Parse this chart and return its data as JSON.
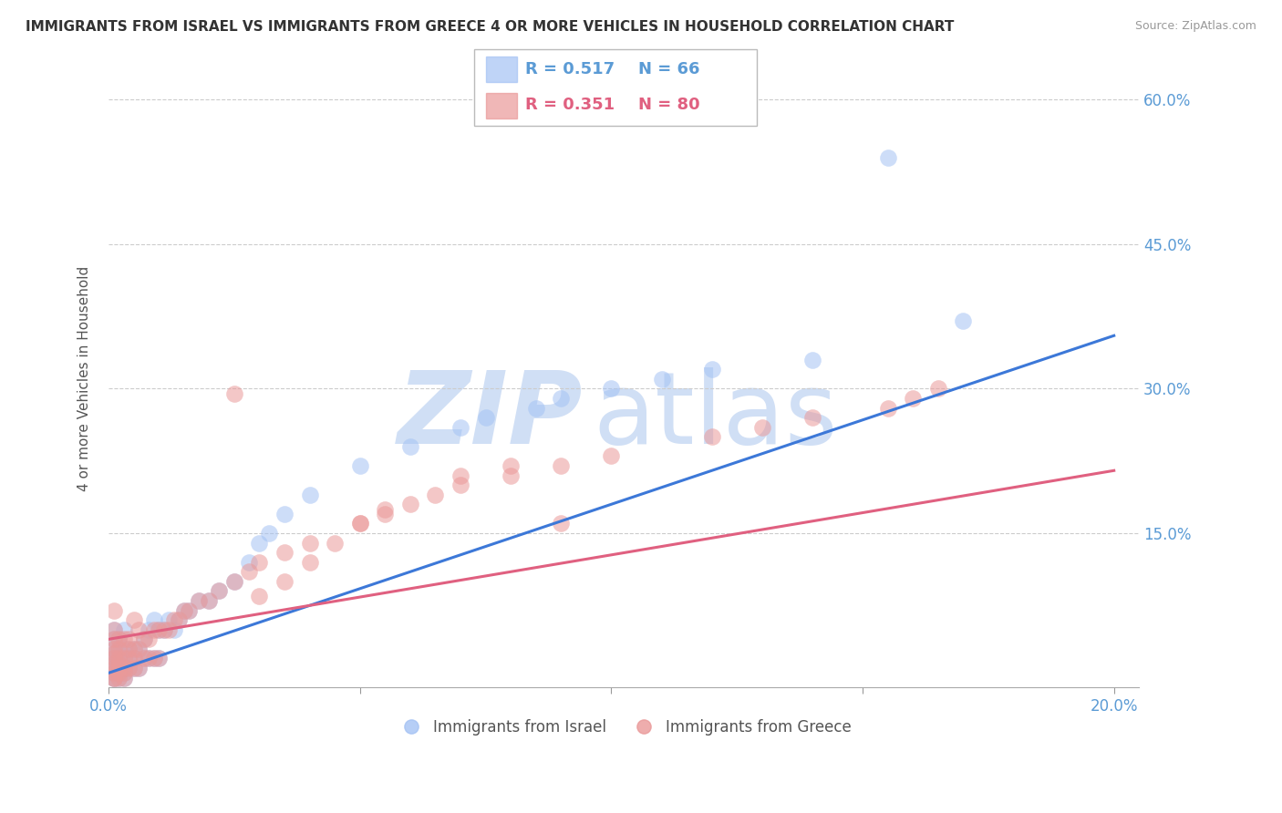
{
  "title": "IMMIGRANTS FROM ISRAEL VS IMMIGRANTS FROM GREECE 4 OR MORE VEHICLES IN HOUSEHOLD CORRELATION CHART",
  "source": "Source: ZipAtlas.com",
  "ylabel": "4 or more Vehicles in Household",
  "xlim": [
    0.0,
    0.205
  ],
  "ylim": [
    -0.01,
    0.63
  ],
  "xtick_vals": [
    0.0,
    0.05,
    0.1,
    0.15,
    0.2
  ],
  "xtick_labels": [
    "0.0%",
    "",
    "",
    "",
    "20.0%"
  ],
  "ytick_vals": [
    0.0,
    0.15,
    0.3,
    0.45,
    0.6
  ],
  "ytick_labels": [
    "",
    "15.0%",
    "30.0%",
    "45.0%",
    "60.0%"
  ],
  "israel_R": 0.517,
  "israel_N": 66,
  "greece_R": 0.351,
  "greece_N": 80,
  "israel_color": "#a4c2f4",
  "greece_color": "#ea9999",
  "israel_line_color": "#3c78d8",
  "greece_line_color": "#e06080",
  "watermark_color": "#d0dff5",
  "israel_line_x0": 0.0,
  "israel_line_y0": 0.005,
  "israel_line_x1": 0.2,
  "israel_line_y1": 0.355,
  "greece_line_x0": 0.0,
  "greece_line_y0": 0.04,
  "greece_line_x1": 0.2,
  "greece_line_y1": 0.215,
  "israel_scatter_x": [
    0.001,
    0.001,
    0.001,
    0.001,
    0.001,
    0.001,
    0.001,
    0.001,
    0.001,
    0.001,
    0.002,
    0.002,
    0.002,
    0.002,
    0.002,
    0.002,
    0.002,
    0.003,
    0.003,
    0.003,
    0.003,
    0.003,
    0.003,
    0.004,
    0.004,
    0.004,
    0.005,
    0.005,
    0.005,
    0.006,
    0.006,
    0.007,
    0.007,
    0.008,
    0.008,
    0.009,
    0.009,
    0.01,
    0.01,
    0.011,
    0.012,
    0.013,
    0.014,
    0.015,
    0.016,
    0.018,
    0.02,
    0.022,
    0.025,
    0.028,
    0.03,
    0.032,
    0.035,
    0.04,
    0.05,
    0.06,
    0.07,
    0.075,
    0.085,
    0.09,
    0.1,
    0.11,
    0.12,
    0.14,
    0.155,
    0.17
  ],
  "israel_scatter_y": [
    0.0,
    0.0,
    0.005,
    0.01,
    0.015,
    0.02,
    0.025,
    0.03,
    0.04,
    0.05,
    0.0,
    0.005,
    0.01,
    0.015,
    0.02,
    0.03,
    0.04,
    0.0,
    0.005,
    0.01,
    0.02,
    0.03,
    0.05,
    0.01,
    0.02,
    0.03,
    0.01,
    0.02,
    0.03,
    0.01,
    0.03,
    0.02,
    0.04,
    0.02,
    0.05,
    0.02,
    0.06,
    0.02,
    0.05,
    0.05,
    0.06,
    0.05,
    0.06,
    0.07,
    0.07,
    0.08,
    0.08,
    0.09,
    0.1,
    0.12,
    0.14,
    0.15,
    0.17,
    0.19,
    0.22,
    0.24,
    0.26,
    0.27,
    0.28,
    0.29,
    0.3,
    0.31,
    0.32,
    0.33,
    0.54,
    0.37
  ],
  "greece_scatter_x": [
    0.001,
    0.001,
    0.001,
    0.001,
    0.001,
    0.001,
    0.001,
    0.001,
    0.001,
    0.001,
    0.001,
    0.002,
    0.002,
    0.002,
    0.002,
    0.002,
    0.002,
    0.002,
    0.003,
    0.003,
    0.003,
    0.003,
    0.003,
    0.004,
    0.004,
    0.004,
    0.004,
    0.005,
    0.005,
    0.005,
    0.005,
    0.006,
    0.006,
    0.006,
    0.007,
    0.007,
    0.008,
    0.008,
    0.009,
    0.009,
    0.01,
    0.01,
    0.011,
    0.012,
    0.013,
    0.014,
    0.015,
    0.016,
    0.018,
    0.02,
    0.022,
    0.025,
    0.028,
    0.03,
    0.035,
    0.04,
    0.05,
    0.055,
    0.06,
    0.065,
    0.07,
    0.08,
    0.09,
    0.1,
    0.12,
    0.13,
    0.14,
    0.155,
    0.16,
    0.165,
    0.025,
    0.03,
    0.035,
    0.04,
    0.045,
    0.05,
    0.055,
    0.07,
    0.08,
    0.09
  ],
  "greece_scatter_y": [
    0.0,
    0.0,
    0.005,
    0.01,
    0.015,
    0.02,
    0.025,
    0.03,
    0.04,
    0.05,
    0.07,
    0.0,
    0.005,
    0.01,
    0.015,
    0.02,
    0.03,
    0.04,
    0.0,
    0.005,
    0.01,
    0.02,
    0.04,
    0.01,
    0.02,
    0.03,
    0.04,
    0.01,
    0.02,
    0.03,
    0.06,
    0.01,
    0.03,
    0.05,
    0.02,
    0.04,
    0.02,
    0.04,
    0.02,
    0.05,
    0.02,
    0.05,
    0.05,
    0.05,
    0.06,
    0.06,
    0.07,
    0.07,
    0.08,
    0.08,
    0.09,
    0.1,
    0.11,
    0.12,
    0.13,
    0.14,
    0.16,
    0.17,
    0.18,
    0.19,
    0.2,
    0.21,
    0.22,
    0.23,
    0.25,
    0.26,
    0.27,
    0.28,
    0.29,
    0.3,
    0.295,
    0.085,
    0.1,
    0.12,
    0.14,
    0.16,
    0.175,
    0.21,
    0.22,
    0.16
  ],
  "legend_israel": "Immigrants from Israel",
  "legend_greece": "Immigrants from Greece"
}
